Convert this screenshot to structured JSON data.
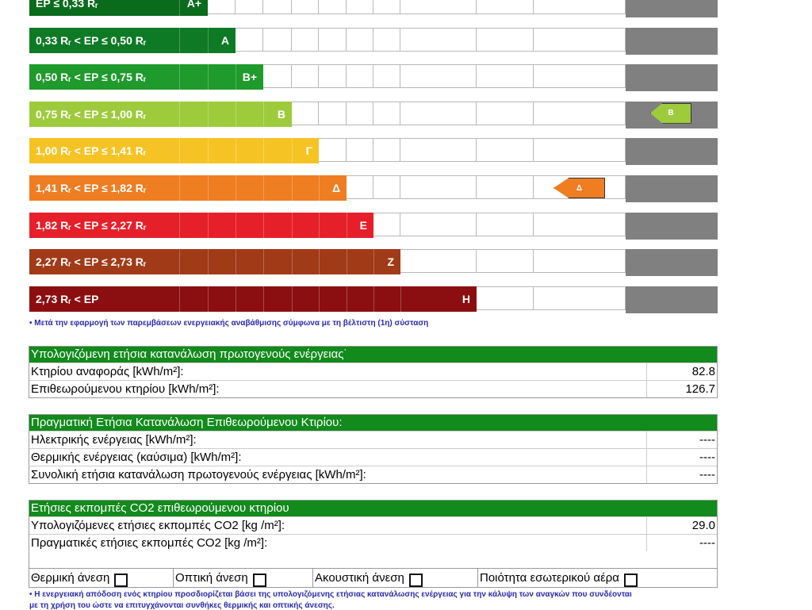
{
  "scale": {
    "rows": [
      {
        "range": "EP ≤ 0,33 Rᵣ",
        "class": "A+",
        "color": "#0b6b1d"
      },
      {
        "range": "0,33 Rᵣ < EP ≤ 0,50 Rᵣ",
        "class": "A",
        "color": "#0f7a25"
      },
      {
        "range": "0,50 Rᵣ < EP ≤ 0,75 Rᵣ",
        "class": "B+",
        "color": "#1f9a2c"
      },
      {
        "range": "0,75 Rᵣ < EP ≤ 1,00 Rᵣ",
        "class": "B",
        "color": "#9dcb3c"
      },
      {
        "range": "1,00 Rᵣ < EP ≤ 1,41 Rᵣ",
        "class": "Γ",
        "color": "#f6c325"
      },
      {
        "range": "1,41 Rᵣ < EP ≤ 1,82 Rᵣ",
        "class": "Δ",
        "color": "#ef7d22"
      },
      {
        "range": "1,82 Rᵣ < EP ≤ 2,27 Rᵣ",
        "class": "E",
        "color": "#e5202a"
      },
      {
        "range": "2,27 Rᵣ < EP ≤ 2,73 Rᵣ",
        "class": "Z",
        "color": "#a13a17"
      },
      {
        "range": "2,73 Rᵣ < EP",
        "class": "H",
        "color": "#8b0f10"
      }
    ],
    "current_class": "Δ",
    "current_color": "#ef7d22",
    "after_class": "B",
    "after_color": "#9dcb3c"
  },
  "note1": "• Μετά την εφαρμογή των παρεμβάσεων ενεργειακής αναβάθμισης σύμφωνα με τη βέλτιστη (1η) σύσταση",
  "calc": {
    "title": "Υπολογιζόμενη ετήσια κατανάλωση πρωτογενούς ενέργειας˙",
    "rows": [
      {
        "k": "Κτηρίου αναφοράς [kWh/m²]:",
        "v": "82.8"
      },
      {
        "k": "Επιθεωρούμενου κτηρίου [kWh/m²]:",
        "v": "126.7"
      }
    ]
  },
  "actual": {
    "title": "Πραγματική Ετήσια Κατανάλωση Επιθεωρούμενου Κτιρίου:",
    "rows": [
      {
        "k": "Ηλεκτρικής ενέργειας [kWh/m²]:",
        "v": "----"
      },
      {
        "k": "Θερμικής ενέργειας (καύσιμα) [kWh/m²]:",
        "v": "----"
      },
      {
        "k": "Συνολική ετήσια κατανάλωση πρωτογενούς ενέργειας [kWh/m²]:",
        "v": "----"
      }
    ]
  },
  "co2": {
    "title": "Ετήσιες εκπομπές CO2 επιθεωρούμενου κτηρίου",
    "rows": [
      {
        "k": "Υπολογιζόμενες ετήσιες εκπομπές CO2 [kg /m²]:",
        "v": "29.0"
      },
      {
        "k": "Πραγματικές ετήσιες εκπομπές CO2 [kg /m²]:",
        "v": "----"
      }
    ]
  },
  "comfort": [
    {
      "label": "Θερμική άνεση",
      "checked": false
    },
    {
      "label": "Οπτική άνεση",
      "checked": false
    },
    {
      "label": "Ακουστική άνεση",
      "checked": false
    },
    {
      "label": "Ποιότητα εσωτερικού αέρα",
      "checked": false
    }
  ],
  "note2": "• Η ενεργειακή απόδοση ενός κτηρίου προσδιορίζεται βάσει της υπολογιζόμενης ετήσιας κατανάλωσης ενέργειας για την κάλυψη των αναγκών που συνδέονται",
  "note3": "με τη χρήση του ώστε να επιτυγχάνονται συνθήκες θερμικής και οπτικής άνεσης."
}
